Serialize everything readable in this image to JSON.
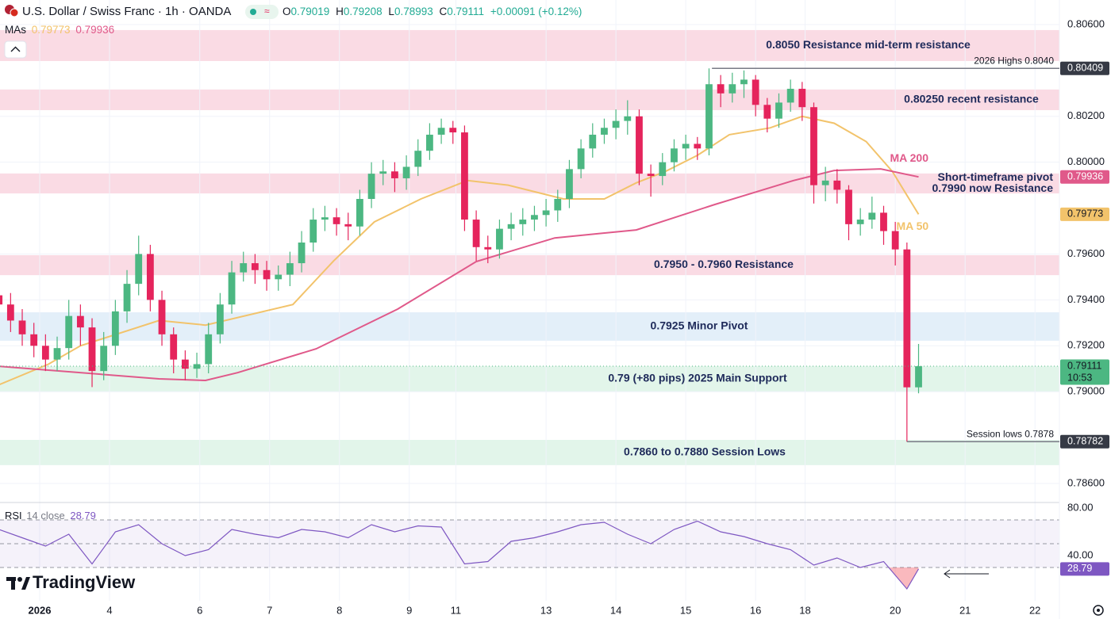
{
  "chart_data": {
    "type": "candlestick",
    "title": "U.S. Dollar / Swiss Franc · 1h · OANDA",
    "ohlc_letters": [
      "O",
      "H",
      "L",
      "C"
    ],
    "change": "+0.00091 (+0.12%)",
    "up_color": "#4cb782",
    "down_color": "#e5245c",
    "countdown": "10:53",
    "ma_legend": "MAs",
    "brand": "TradingView",
    "x": [
      -14,
      -10,
      -6,
      -2,
      2,
      6,
      10,
      14,
      18,
      22,
      26,
      30,
      34,
      38,
      42,
      46,
      50,
      54,
      58,
      62,
      66,
      70,
      74,
      78,
      82,
      86,
      90,
      94,
      98,
      102,
      106,
      110,
      114,
      118,
      122,
      126,
      130,
      134,
      138,
      142,
      146,
      150,
      154,
      158,
      162,
      166,
      170,
      174,
      178,
      182,
      186,
      190,
      194,
      198,
      202,
      206,
      210,
      214,
      218,
      222,
      226,
      230,
      234,
      238,
      242,
      246,
      250,
      254,
      258,
      262,
      266,
      270,
      274,
      278,
      282,
      286,
      290,
      294,
      298,
      302
    ],
    "open": [
      0.7942,
      0.7938,
      0.7931,
      0.7925,
      0.792,
      0.7914,
      0.7919,
      0.7933,
      0.7928,
      0.7909,
      0.792,
      0.7935,
      0.7947,
      0.796,
      0.794,
      0.7925,
      0.7914,
      0.791,
      0.7912,
      0.7925,
      0.7938,
      0.7952,
      0.7956,
      0.7953,
      0.7949,
      0.7951,
      0.7956,
      0.7965,
      0.7975,
      0.7976,
      0.7973,
      0.7972,
      0.7984,
      0.7995,
      0.7996,
      0.7993,
      0.7998,
      0.8005,
      0.8012,
      0.8015,
      0.8013,
      0.7975,
      0.7963,
      0.7962,
      0.7971,
      0.7973,
      0.7975,
      0.7977,
      0.7979,
      0.7984,
      0.7997,
      0.8006,
      0.8012,
      0.8015,
      0.8018,
      0.802,
      0.7995,
      0.7994,
      0.8,
      0.8006,
      0.8008,
      0.8006,
      0.8034,
      0.803,
      0.8034,
      0.8036,
      0.8025,
      0.8019,
      0.8026,
      0.8032,
      0.8024,
      0.799,
      0.7992,
      0.7988,
      0.7973,
      0.7975,
      0.7978,
      0.797,
      0.7962,
      0.79019
    ],
    "high": [
      0.7947,
      0.7943,
      0.7936,
      0.793,
      0.7925,
      0.7924,
      0.794,
      0.7938,
      0.7932,
      0.7926,
      0.794,
      0.7953,
      0.7968,
      0.7964,
      0.7944,
      0.7928,
      0.7918,
      0.7917,
      0.793,
      0.7943,
      0.7957,
      0.7961,
      0.796,
      0.7957,
      0.7955,
      0.7961,
      0.797,
      0.798,
      0.7981,
      0.798,
      0.7978,
      0.7988,
      0.8,
      0.8001,
      0.8,
      0.8003,
      0.801,
      0.8017,
      0.8019,
      0.8018,
      0.8016,
      0.7979,
      0.7968,
      0.7975,
      0.7978,
      0.798,
      0.7981,
      0.7984,
      0.7988,
      0.8001,
      0.801,
      0.8017,
      0.8019,
      0.8023,
      0.8027,
      0.8023,
      0.7999,
      0.8004,
      0.801,
      0.8012,
      0.8011,
      0.80409,
      0.8038,
      0.8039,
      0.804,
      0.8038,
      0.8028,
      0.803,
      0.8036,
      0.8035,
      0.8026,
      0.7998,
      0.7997,
      0.799,
      0.798,
      0.7985,
      0.7981,
      0.7974,
      0.7965,
      0.79208
    ],
    "low": [
      0.7933,
      0.7926,
      0.792,
      0.7915,
      0.7909,
      0.7909,
      0.7914,
      0.792,
      0.7902,
      0.7905,
      0.7916,
      0.793,
      0.7942,
      0.7935,
      0.792,
      0.7908,
      0.7905,
      0.7906,
      0.7908,
      0.7921,
      0.7934,
      0.7948,
      0.7947,
      0.7944,
      0.7944,
      0.7946,
      0.7952,
      0.7961,
      0.797,
      0.7968,
      0.7966,
      0.7968,
      0.798,
      0.799,
      0.7987,
      0.7988,
      0.7994,
      0.8001,
      0.8008,
      0.8008,
      0.797,
      0.7957,
      0.7956,
      0.7958,
      0.7966,
      0.7968,
      0.797,
      0.7972,
      0.7974,
      0.798,
      0.7993,
      0.8002,
      0.8008,
      0.801,
      0.8012,
      0.799,
      0.7985,
      0.799,
      0.7996,
      0.8001,
      0.8001,
      0.8003,
      0.8024,
      0.8026,
      0.8028,
      0.802,
      0.8013,
      0.8015,
      0.8022,
      0.8018,
      0.7982,
      0.7983,
      0.7982,
      0.7966,
      0.7968,
      0.7971,
      0.7964,
      0.7955,
      0.78782,
      0.78993
    ],
    "close": [
      0.7938,
      0.7931,
      0.7925,
      0.792,
      0.7914,
      0.7919,
      0.7933,
      0.7928,
      0.7909,
      0.792,
      0.7935,
      0.7947,
      0.796,
      0.794,
      0.7925,
      0.7914,
      0.791,
      0.7912,
      0.7925,
      0.7938,
      0.7952,
      0.7956,
      0.7953,
      0.7949,
      0.7951,
      0.7956,
      0.7965,
      0.7975,
      0.7976,
      0.7973,
      0.7972,
      0.7984,
      0.7995,
      0.7996,
      0.7993,
      0.7998,
      0.8005,
      0.8012,
      0.8015,
      0.8013,
      0.7975,
      0.7963,
      0.7962,
      0.7971,
      0.7973,
      0.7975,
      0.7977,
      0.7979,
      0.7984,
      0.7997,
      0.8006,
      0.8012,
      0.8015,
      0.8018,
      0.802,
      0.7995,
      0.7994,
      0.8,
      0.8006,
      0.8008,
      0.8006,
      0.8034,
      0.803,
      0.8034,
      0.8036,
      0.8025,
      0.8019,
      0.8026,
      0.8032,
      0.8024,
      0.799,
      0.7992,
      0.7988,
      0.7973,
      0.7975,
      0.7978,
      0.797,
      0.7962,
      0.79019,
      0.79111
    ],
    "series": [
      {
        "name": "MA 50",
        "color": "#f2c36b",
        "x": [
          -14,
          3,
          14,
          41,
          57,
          87,
          101,
          115,
          131,
          147,
          161,
          180,
          194,
          205,
          215,
          226,
          237,
          251,
          262,
          273,
          284,
          293,
          302
        ],
        "values": [
          0.7903,
          0.7912,
          0.792,
          0.7931,
          0.7929,
          0.7938,
          0.7957,
          0.7974,
          0.7984,
          0.7992,
          0.799,
          0.7984,
          0.7984,
          0.7991,
          0.7996,
          0.8003,
          0.8012,
          0.8015,
          0.802,
          0.8017,
          0.8009,
          0.7996,
          0.79773
        ]
      },
      {
        "name": "MA 200",
        "color": "#e0598a",
        "x": [
          -14,
          41,
          57,
          68,
          95,
          123,
          150,
          177,
          205,
          232,
          259,
          273,
          289,
          302
        ],
        "values": [
          0.79111,
          0.79056,
          0.79049,
          0.79083,
          0.79187,
          0.7936,
          0.79567,
          0.7967,
          0.79705,
          0.79816,
          0.7992,
          0.79964,
          0.79971,
          0.79936
        ]
      }
    ],
    "xlim": [
      -13.64,
      350.4
    ],
    "xticks": [
      {
        "value": 0,
        "label": "2026"
      },
      {
        "value": 24,
        "label": "4"
      },
      {
        "value": 55,
        "label": "6"
      },
      {
        "value": 79,
        "label": "7"
      },
      {
        "value": 103,
        "label": "8"
      },
      {
        "value": 127,
        "label": "9"
      },
      {
        "value": 143,
        "label": "11"
      },
      {
        "value": 174,
        "label": "13"
      },
      {
        "value": 198,
        "label": "14"
      },
      {
        "value": 222,
        "label": "15"
      },
      {
        "value": 246,
        "label": "16"
      },
      {
        "value": 263,
        "label": "18"
      },
      {
        "value": 294,
        "label": "20"
      },
      {
        "value": 318,
        "label": "21"
      },
      {
        "value": 342,
        "label": "22"
      }
    ],
    "ylim": [
      0.78524,
      0.80707
    ],
    "yticks": [
      {
        "value": 0.806,
        "label": "0.80600"
      },
      {
        "value": 0.802,
        "label": "0.80200"
      },
      {
        "value": 0.8,
        "label": "0.80000"
      },
      {
        "value": 0.796,
        "label": "0.79600"
      },
      {
        "value": 0.794,
        "label": "0.79400"
      },
      {
        "value": 0.792,
        "label": "0.79200"
      },
      {
        "value": 0.79,
        "label": "0.79000"
      },
      {
        "value": 0.786,
        "label": "0.78600"
      }
    ],
    "grid": true,
    "zones": [
      {
        "lines": [
          "0.8050 Resistance mid-term resistance"
        ],
        "from": 0.80441,
        "to": 0.80576,
        "color": "#fadbe4"
      },
      {
        "lines": [
          "0.80250 recent resistance"
        ],
        "from": 0.80227,
        "to": 0.80317,
        "color": "#fadbe4"
      },
      {
        "lines": [
          "Short-timeframe pivot",
          "0.7990 now Resistance"
        ],
        "from": 0.79864,
        "to": 0.79951,
        "color": "#fadbe4"
      },
      {
        "lines": [
          "0.7950 - 0.7960 Resistance"
        ],
        "from": 0.79508,
        "to": 0.79595,
        "color": "#fadbe4"
      },
      {
        "lines": [
          "0.7925 Minor Pivot"
        ],
        "from": 0.79222,
        "to": 0.79346,
        "color": "#e3eff9"
      },
      {
        "lines": [
          "0.79 (+80 pips) 2025 Main Support"
        ],
        "from": 0.79001,
        "to": 0.79111,
        "color": "#e2f5ea"
      },
      {
        "lines": [
          "0.7860 to 0.7880 Session Lows"
        ],
        "from": 0.7868,
        "to": 0.7879,
        "color": "#e2f5ea"
      }
    ],
    "levels": [
      {
        "label": "2026 Highs 0.8040",
        "value": 0.80409,
        "from": 231,
        "color": "#787b86",
        "badge": "#363a45"
      },
      {
        "label": "Session lows 0.7878",
        "value": 0.78782,
        "from": 298,
        "color": "#787b86",
        "badge": "#363a45"
      }
    ],
    "rsi": {
      "title": "RSI",
      "params": "14 close",
      "color": "#7e57c2",
      "x": [
        -14,
        -6,
        2,
        10,
        18,
        26,
        34,
        42,
        50,
        58,
        66,
        74,
        82,
        90,
        98,
        106,
        114,
        122,
        130,
        138,
        146,
        154,
        162,
        170,
        178,
        186,
        194,
        202,
        210,
        218,
        226,
        234,
        242,
        250,
        258,
        266,
        274,
        282,
        290,
        298,
        302
      ],
      "values": [
        62,
        55,
        48,
        58,
        33,
        60,
        66,
        50,
        40,
        45,
        62,
        58,
        55,
        62,
        60,
        55,
        66,
        60,
        65,
        64,
        33,
        35,
        52,
        55,
        60,
        66,
        68,
        58,
        50,
        62,
        69,
        60,
        56,
        50,
        45,
        32,
        38,
        30,
        35,
        12,
        28.79
      ],
      "ylim": [
        2,
        83.33
      ],
      "yticks": [
        {
          "value": 80,
          "label": "80.00"
        },
        {
          "value": 40,
          "label": "40.00"
        }
      ],
      "bands": [
        70,
        50,
        30
      ]
    }
  }
}
